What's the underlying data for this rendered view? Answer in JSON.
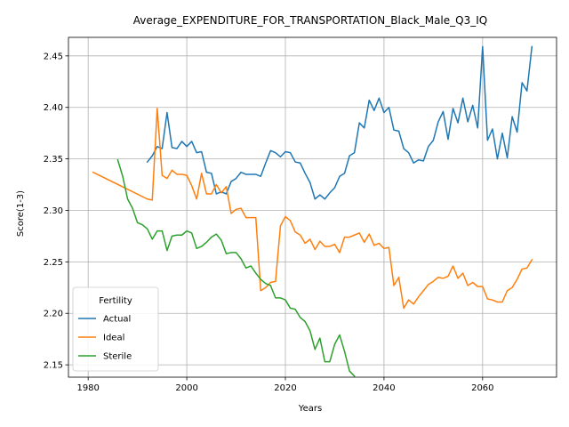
{
  "chart_data": {
    "type": "line",
    "title": "Average_EXPENDITURE_FOR_TRANSPORTATION_Black_Male_Q3_IQ",
    "xlabel": "Years",
    "ylabel": "Score(1-3)",
    "xlim": [
      1976,
      2075
    ],
    "ylim": [
      2.138,
      2.468
    ],
    "xticks": [
      1980,
      2000,
      2020,
      2040,
      2060
    ],
    "yticks": [
      2.15,
      2.2,
      2.25,
      2.3,
      2.35,
      2.4,
      2.45
    ],
    "ytick_labels": [
      "2.15",
      "2.20",
      "2.25",
      "2.30",
      "2.35",
      "2.40",
      "2.45"
    ],
    "grid": true,
    "legend": {
      "title": "Fertility",
      "placement": "lower-left"
    },
    "series": [
      {
        "name": "Actual",
        "color": "#1f77b4",
        "x": [
          1992,
          1993,
          1994,
          1995,
          1996,
          1997,
          1998,
          1999,
          2000,
          2001,
          2002,
          2003,
          2004,
          2005,
          2006,
          2007,
          2008,
          2009,
          2010,
          2011,
          2012,
          2013,
          2014,
          2015,
          2016,
          2017,
          2018,
          2019,
          2020,
          2021,
          2022,
          2023,
          2024,
          2025,
          2026,
          2027,
          2028,
          2029,
          2030,
          2031,
          2032,
          2033,
          2034,
          2035,
          2036,
          2037,
          2038,
          2039,
          2040,
          2041,
          2042,
          2043,
          2044,
          2045,
          2046,
          2047,
          2048,
          2049,
          2050,
          2051,
          2052,
          2053,
          2054,
          2055,
          2056,
          2057,
          2058,
          2059,
          2060,
          2061,
          2062,
          2063,
          2064,
          2065,
          2066,
          2067,
          2068,
          2069,
          2070
        ],
        "y": [
          2.347,
          2.353,
          2.362,
          2.36,
          2.395,
          2.361,
          2.36,
          2.367,
          2.362,
          2.367,
          2.356,
          2.357,
          2.337,
          2.336,
          2.316,
          2.318,
          2.316,
          2.328,
          2.331,
          2.337,
          2.335,
          2.335,
          2.335,
          2.333,
          2.346,
          2.358,
          2.356,
          2.352,
          2.357,
          2.356,
          2.347,
          2.346,
          2.336,
          2.327,
          2.311,
          2.315,
          2.311,
          2.317,
          2.322,
          2.333,
          2.336,
          2.353,
          2.356,
          2.385,
          2.38,
          2.407,
          2.397,
          2.409,
          2.395,
          2.4,
          2.378,
          2.377,
          2.36,
          2.356,
          2.346,
          2.349,
          2.348,
          2.362,
          2.368,
          2.386,
          2.396,
          2.369,
          2.399,
          2.385,
          2.409,
          2.386,
          2.402,
          2.38,
          2.459,
          2.368,
          2.379,
          2.35,
          2.375,
          2.351,
          2.391,
          2.376,
          2.424,
          2.416,
          2.459
        ]
      },
      {
        "name": "Ideal",
        "color": "#ff7f0e",
        "x": [
          1981,
          1992,
          1993,
          1994,
          1995,
          1996,
          1997,
          1998,
          1999,
          2000,
          2001,
          2002,
          2003,
          2004,
          2005,
          2006,
          2007,
          2008,
          2009,
          2010,
          2011,
          2012,
          2013,
          2014,
          2015,
          2016,
          2017,
          2018,
          2019,
          2020,
          2021,
          2022,
          2023,
          2024,
          2025,
          2026,
          2027,
          2028,
          2029,
          2030,
          2031,
          2032,
          2033,
          2034,
          2035,
          2036,
          2037,
          2038,
          2039,
          2040,
          2041,
          2042,
          2043,
          2044,
          2045,
          2046,
          2047,
          2048,
          2049,
          2050,
          2051,
          2052,
          2053,
          2054,
          2055,
          2056,
          2057,
          2058,
          2059,
          2060,
          2061,
          2062,
          2063,
          2064,
          2065,
          2066,
          2067,
          2068,
          2069,
          2070
        ],
        "y": [
          2.337,
          2.311,
          2.31,
          2.399,
          2.334,
          2.331,
          2.339,
          2.335,
          2.335,
          2.334,
          2.324,
          2.311,
          2.336,
          2.316,
          2.316,
          2.325,
          2.317,
          2.323,
          2.297,
          2.301,
          2.302,
          2.293,
          2.293,
          2.293,
          2.222,
          2.225,
          2.23,
          2.231,
          2.285,
          2.294,
          2.29,
          2.279,
          2.276,
          2.268,
          2.272,
          2.262,
          2.27,
          2.265,
          2.265,
          2.267,
          2.259,
          2.274,
          2.274,
          2.276,
          2.278,
          2.269,
          2.277,
          2.266,
          2.268,
          2.263,
          2.264,
          2.227,
          2.235,
          2.205,
          2.213,
          2.209,
          2.216,
          2.222,
          2.228,
          2.231,
          2.235,
          2.234,
          2.236,
          2.246,
          2.234,
          2.239,
          2.227,
          2.23,
          2.226,
          2.226,
          2.214,
          2.213,
          2.211,
          2.211,
          2.222,
          2.225,
          2.233,
          2.243,
          2.244,
          2.252
        ]
      },
      {
        "name": "Sterile",
        "color": "#2ca02c",
        "x": [
          1986,
          1987,
          1988,
          1989,
          1990,
          1991,
          1992,
          1993,
          1994,
          1995,
          1996,
          1997,
          1998,
          1999,
          2000,
          2001,
          2002,
          2003,
          2004,
          2005,
          2006,
          2007,
          2008,
          2009,
          2010,
          2011,
          2012,
          2013,
          2014,
          2015,
          2016,
          2017,
          2018,
          2019,
          2020,
          2021,
          2022,
          2023,
          2024,
          2025,
          2026,
          2027,
          2028,
          2029,
          2030,
          2031,
          2032,
          2033,
          2034
        ],
        "y": [
          2.349,
          2.333,
          2.311,
          2.302,
          2.288,
          2.286,
          2.282,
          2.272,
          2.28,
          2.28,
          2.261,
          2.275,
          2.276,
          2.276,
          2.28,
          2.278,
          2.263,
          2.265,
          2.269,
          2.274,
          2.277,
          2.271,
          2.258,
          2.259,
          2.259,
          2.253,
          2.244,
          2.246,
          2.239,
          2.233,
          2.229,
          2.227,
          2.215,
          2.215,
          2.213,
          2.205,
          2.204,
          2.196,
          2.192,
          2.183,
          2.165,
          2.176,
          2.153,
          2.153,
          2.17,
          2.179,
          2.163,
          2.144,
          2.139
        ]
      }
    ]
  }
}
